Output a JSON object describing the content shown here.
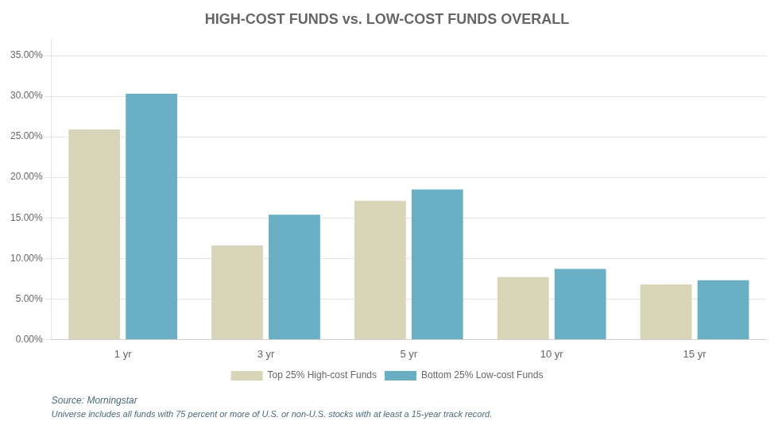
{
  "chart_data": {
    "type": "bar",
    "title": "HIGH-COST FUNDS vs. LOW-COST FUNDS OVERALL",
    "categories": [
      "1 yr",
      "3 yr",
      "5 yr",
      "10 yr",
      "15 yr"
    ],
    "series": [
      {
        "name": "Top 25% High-cost Funds",
        "color": "#d8d5b8",
        "values": [
          0.259,
          0.116,
          0.171,
          0.077,
          0.068
        ]
      },
      {
        "name": "Bottom 25% Low-cost Funds",
        "color": "#6aafc4",
        "values": [
          0.303,
          0.154,
          0.185,
          0.087,
          0.073
        ]
      }
    ],
    "ylim": [
      0,
      0.37
    ],
    "yticks": [
      {
        "value": 0.0,
        "label": "0.00%"
      },
      {
        "value": 0.05,
        "label": "5.00%"
      },
      {
        "value": 0.1,
        "label": "10.00%"
      },
      {
        "value": 0.15,
        "label": "15.00%"
      },
      {
        "value": 0.2,
        "label": "20.00%"
      },
      {
        "value": 0.25,
        "label": "25.00%"
      },
      {
        "value": 0.3,
        "label": "30.00%"
      },
      {
        "value": 0.35,
        "label": "35.00%"
      }
    ],
    "grid": true,
    "legend": "bottom",
    "annotations": [
      "Source: Morningstar",
      "Universe includes all funds with 75 percent or more of U.S. or non-U.S. stocks with at least a 15-year track record."
    ]
  }
}
